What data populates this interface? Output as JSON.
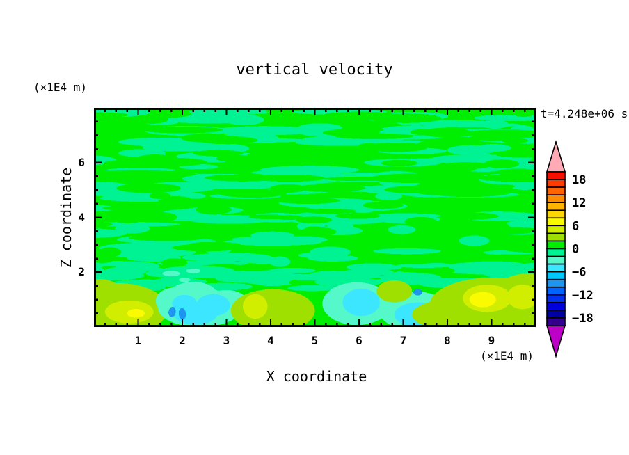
{
  "labels": {
    "title": "vertical velocity",
    "time": "t=4.248e+06 s",
    "y_unit": "(×1E4 m)",
    "x_unit": "(×1E4 m)",
    "x_axis": "X coordinate",
    "y_axis": "Z coordinate"
  },
  "chart_data": {
    "type": "heatmap",
    "title": "vertical velocity",
    "subtitle": "t=4.248e+06 s",
    "xlabel": "X coordinate (×1E4 m)",
    "ylabel": "Z coordinate (×1E4 m)",
    "x_range": [
      0,
      10
    ],
    "z_range": [
      0,
      8
    ],
    "x_major_ticks": [
      1,
      2,
      3,
      4,
      5,
      6,
      7,
      8,
      9
    ],
    "x_minor_step": 0.25,
    "y_major_ticks": [
      2,
      4,
      6
    ],
    "y_minor_step": 0.5,
    "grid": false,
    "legend_position": "right",
    "colorbar": {
      "min": -20,
      "max": 20,
      "band_step": 2,
      "tick_values": [
        18,
        12,
        6,
        0,
        -6,
        -12,
        -18
      ],
      "tick_labels": [
        "18",
        "12",
        "6",
        "0",
        "−6",
        "−12",
        "−18"
      ],
      "band_colors_top_to_bottom": [
        "#F50F00",
        "#FF3C00",
        "#FF6400",
        "#FF8C00",
        "#FFB400",
        "#FFD700",
        "#FAFA00",
        "#D2EE00",
        "#A0E000",
        "#00EF00",
        "#00F392",
        "#55F8C8",
        "#3CE6FF",
        "#00C8FF",
        "#1E96F0",
        "#0064FF",
        "#0032F0",
        "#0000DC",
        "#0000A0",
        "#32008C"
      ],
      "over_arrow_color": "#FFAAB4",
      "under_arrow_color": "#BC00C8"
    },
    "field": {
      "description": "Mottled horizontal streaks of weak vertical velocity (bands -2..0 and 0..2) fill most of the domain; stronger updraft (yellow-green) and downdraft (cyan/blue) cells sit along the bottom boundary below z≈2×10^4 m.",
      "base_color": "#00EF00",
      "streak_color": "#00F392",
      "texture_seed": 1337,
      "texture_zone_z": [
        1.45,
        8
      ],
      "features": [
        {
          "name": "updraft-left-outer",
          "color": "#A0E000",
          "ellipses": [
            {
              "c": [
                0.55,
                0.65
              ],
              "r": [
                1.12,
                0.95
              ]
            },
            {
              "c": [
                0.15,
                1.05
              ],
              "r": [
                0.55,
                0.7
              ]
            }
          ]
        },
        {
          "name": "updraft-left-mid",
          "color": "#D2EE00",
          "ellipses": [
            {
              "c": [
                0.8,
                0.55
              ],
              "r": [
                0.55,
                0.42
              ]
            }
          ]
        },
        {
          "name": "updraft-left-core",
          "color": "#FAFA00",
          "ellipses": [
            {
              "c": [
                0.95,
                0.5
              ],
              "r": [
                0.2,
                0.16
              ]
            }
          ]
        },
        {
          "name": "downdraft-1-halo",
          "color": "#55F8C8",
          "ellipses": [
            {
              "c": [
                2.4,
                0.7
              ],
              "r": [
                0.95,
                0.7
              ]
            },
            {
              "c": [
                2.25,
                1.15
              ],
              "r": [
                0.55,
                0.5
              ]
            },
            {
              "c": [
                3.0,
                0.85
              ],
              "r": [
                0.5,
                0.5
              ]
            },
            {
              "c": [
                1.85,
                0.95
              ],
              "r": [
                0.45,
                0.5
              ]
            }
          ]
        },
        {
          "name": "downdraft-1-core",
          "color": "#3CE6FF",
          "ellipses": [
            {
              "c": [
                2.3,
                0.5
              ],
              "r": [
                0.5,
                0.42
              ]
            },
            {
              "c": [
                2.7,
                0.8
              ],
              "r": [
                0.38,
                0.4
              ]
            },
            {
              "c": [
                2.05,
                0.85
              ],
              "r": [
                0.28,
                0.32
              ]
            }
          ]
        },
        {
          "name": "downdraft-1-spots",
          "color": "#1E96F0",
          "ellipses": [
            {
              "c": [
                1.77,
                0.55
              ],
              "r": [
                0.08,
                0.19
              ],
              "rot": 10
            },
            {
              "c": [
                2.0,
                0.48
              ],
              "r": [
                0.08,
                0.21
              ],
              "rot": -6
            }
          ]
        },
        {
          "name": "updraft-2-outer",
          "color": "#A0E000",
          "ellipses": [
            {
              "c": [
                4.05,
                0.6
              ],
              "r": [
                0.95,
                0.78
              ]
            }
          ]
        },
        {
          "name": "updraft-2-mid",
          "color": "#D2EE00",
          "ellipses": [
            {
              "c": [
                3.65,
                0.75
              ],
              "r": [
                0.28,
                0.45
              ],
              "rot": 25
            }
          ]
        },
        {
          "name": "downdraft-2-halo",
          "color": "#55F8C8",
          "ellipses": [
            {
              "c": [
                5.95,
                0.85
              ],
              "r": [
                0.78,
                0.78
              ]
            }
          ]
        },
        {
          "name": "downdraft-2-core",
          "color": "#3CE6FF",
          "ellipses": [
            {
              "c": [
                6.05,
                0.9
              ],
              "r": [
                0.42,
                0.5
              ]
            }
          ]
        },
        {
          "name": "downdraft-3-halo",
          "color": "#55F8C8",
          "ellipses": [
            {
              "c": [
                7.25,
                0.6
              ],
              "r": [
                0.8,
                0.7
              ]
            }
          ]
        },
        {
          "name": "downdraft-3-core",
          "color": "#3CE6FF",
          "ellipses": [
            {
              "c": [
                7.35,
                0.45
              ],
              "r": [
                0.55,
                0.45
              ]
            }
          ]
        },
        {
          "name": "updraft-spot",
          "color": "#A0E000",
          "ellipses": [
            {
              "c": [
                6.8,
                1.3
              ],
              "r": [
                0.4,
                0.4
              ]
            }
          ]
        },
        {
          "name": "downdraft-spot",
          "color": "#1E96F0",
          "ellipses": [
            {
              "c": [
                7.33,
                1.27
              ],
              "r": [
                0.1,
                0.12
              ]
            }
          ]
        },
        {
          "name": "updraft-right-outer",
          "color": "#A0E000",
          "ellipses": [
            {
              "c": [
                9.0,
                0.8
              ],
              "r": [
                1.4,
                1.0
              ]
            },
            {
              "c": [
                9.8,
                1.0
              ],
              "r": [
                0.8,
                0.95
              ]
            },
            {
              "c": [
                8.1,
                0.45
              ],
              "r": [
                0.9,
                0.55
              ]
            }
          ]
        },
        {
          "name": "updraft-right-mid",
          "color": "#D2EE00",
          "ellipses": [
            {
              "c": [
                8.9,
                1.05
              ],
              "r": [
                0.55,
                0.5
              ]
            },
            {
              "c": [
                9.7,
                1.1
              ],
              "r": [
                0.35,
                0.45
              ]
            }
          ]
        },
        {
          "name": "updraft-right-core",
          "color": "#FAFA00",
          "ellipses": [
            {
              "c": [
                8.8,
                1.0
              ],
              "r": [
                0.3,
                0.28
              ]
            }
          ]
        },
        {
          "name": "mint-specks",
          "color": "#55F8C8",
          "ellipses": [
            {
              "c": [
                1.75,
                1.95
              ],
              "r": [
                0.2,
                0.1
              ]
            },
            {
              "c": [
                2.25,
                2.05
              ],
              "r": [
                0.16,
                0.09
              ]
            },
            {
              "c": [
                2.05,
                1.72
              ],
              "r": [
                0.13,
                0.08
              ]
            }
          ]
        }
      ]
    }
  }
}
